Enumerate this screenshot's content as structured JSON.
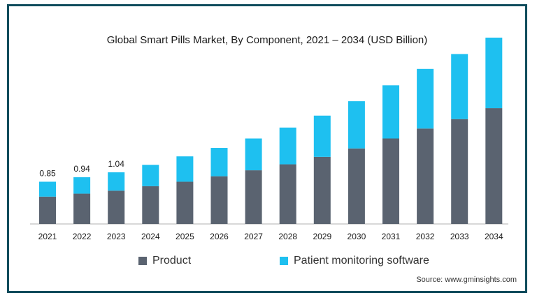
{
  "colors": {
    "product": "#5a6370",
    "software": "#1ec0f0",
    "frame": "#0f4c5c",
    "axis": "#b0b0b0"
  },
  "chart_data": {
    "type": "bar",
    "stacked": true,
    "title": "Global Smart Pills Market, By Component, 2021 – 2034 (USD Billion)",
    "categories": [
      "2021",
      "2022",
      "2023",
      "2024",
      "2025",
      "2026",
      "2027",
      "2028",
      "2029",
      "2030",
      "2031",
      "2032",
      "2033",
      "2034"
    ],
    "series": [
      {
        "name": "Product",
        "values": [
          0.55,
          0.61,
          0.67,
          0.76,
          0.85,
          0.96,
          1.08,
          1.2,
          1.35,
          1.52,
          1.72,
          1.92,
          2.11,
          2.33
        ]
      },
      {
        "name": "Patient monitoring software",
        "values": [
          0.3,
          0.33,
          0.37,
          0.43,
          0.51,
          0.57,
          0.64,
          0.74,
          0.83,
          0.95,
          1.07,
          1.2,
          1.31,
          1.42
        ]
      }
    ],
    "data_labels": [
      "0.85",
      "0.94",
      "1.04"
    ],
    "ylim": [
      0,
      4.1
    ],
    "legend": "bottom",
    "grid": false
  },
  "source": "Source: www.gminsights.com"
}
